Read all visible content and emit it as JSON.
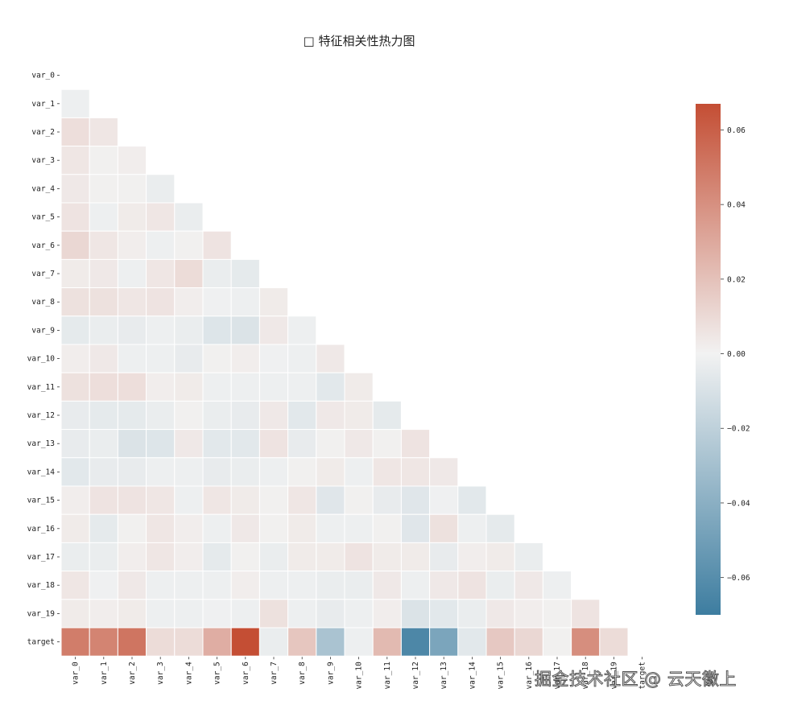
{
  "chart_data": {
    "type": "heatmap",
    "title": "□ 特征相关性热力图",
    "labels": [
      "var_0",
      "var_1",
      "var_2",
      "var_3",
      "var_4",
      "var_5",
      "var_6",
      "var_7",
      "var_8",
      "var_9",
      "var_10",
      "var_11",
      "var_12",
      "var_13",
      "var_14",
      "var_15",
      "var_16",
      "var_17",
      "var_18",
      "var_19",
      "target"
    ],
    "mask": "upper-triangle",
    "values": [
      [],
      [
        -0.002
      ],
      [
        0.008,
        0.005
      ],
      [
        0.005,
        0.001,
        0.002
      ],
      [
        0.004,
        0.001,
        0.001,
        -0.003
      ],
      [
        0.006,
        -0.002,
        0.003,
        0.005,
        -0.003
      ],
      [
        0.011,
        0.005,
        0.002,
        -0.002,
        0.001,
        0.006
      ],
      [
        0.003,
        0.004,
        -0.002,
        0.005,
        0.009,
        -0.003,
        -0.005
      ],
      [
        0.007,
        0.007,
        0.005,
        0.006,
        0.002,
        -0.001,
        -0.002,
        0.003
      ],
      [
        -0.005,
        -0.003,
        -0.004,
        -0.002,
        -0.003,
        -0.008,
        -0.009,
        0.004,
        -0.002
      ],
      [
        0.002,
        0.004,
        -0.002,
        -0.002,
        -0.004,
        0.001,
        0.002,
        -0.001,
        -0.002,
        0.004
      ],
      [
        0.007,
        0.008,
        0.008,
        0.002,
        0.003,
        -0.002,
        -0.002,
        -0.002,
        -0.002,
        -0.006,
        0.003
      ],
      [
        -0.004,
        -0.005,
        -0.005,
        -0.003,
        0.001,
        -0.003,
        -0.004,
        0.004,
        -0.006,
        0.004,
        0.003,
        -0.005
      ],
      [
        -0.004,
        -0.003,
        -0.009,
        -0.008,
        0.004,
        -0.006,
        -0.006,
        0.006,
        -0.004,
        0.001,
        0.004,
        0.001,
        0.006
      ],
      [
        -0.006,
        -0.004,
        -0.004,
        -0.002,
        -0.002,
        -0.004,
        -0.003,
        -0.002,
        0.001,
        0.003,
        -0.002,
        0.005,
        0.005,
        0.004
      ],
      [
        0.002,
        0.006,
        0.006,
        0.005,
        -0.002,
        0.005,
        0.003,
        0.001,
        0.005,
        -0.007,
        0.001,
        -0.004,
        -0.007,
        -0.001,
        -0.006
      ],
      [
        0.003,
        -0.005,
        0.001,
        0.005,
        0.002,
        -0.002,
        0.004,
        0.001,
        0.003,
        -0.002,
        -0.002,
        0.001,
        -0.007,
        0.007,
        -0.002,
        -0.005
      ],
      [
        -0.003,
        -0.003,
        0.002,
        0.005,
        0.002,
        -0.005,
        0.001,
        -0.003,
        0.003,
        0.003,
        0.006,
        0.003,
        0.003,
        -0.004,
        0.002,
        0.003,
        -0.003
      ],
      [
        0.005,
        -0.001,
        0.004,
        -0.002,
        -0.002,
        -0.002,
        0.002,
        -0.002,
        -0.002,
        -0.003,
        -0.003,
        0.004,
        -0.002,
        0.004,
        0.006,
        -0.003,
        0.004,
        -0.002
      ],
      [
        0.003,
        0.002,
        0.003,
        -0.002,
        -0.002,
        -0.001,
        -0.002,
        0.007,
        -0.002,
        -0.004,
        -0.002,
        0.002,
        -0.009,
        -0.006,
        -0.003,
        0.004,
        0.002,
        0.001,
        0.006
      ],
      [
        0.048,
        0.045,
        0.051,
        0.009,
        0.009,
        0.028,
        0.068,
        -0.003,
        0.018,
        -0.028,
        -0.002,
        0.023,
        -0.064,
        -0.046,
        -0.006,
        0.017,
        0.011,
        0.001,
        0.041,
        0.009
      ]
    ],
    "colorbar": {
      "ticks": [
        0.06,
        0.04,
        0.02,
        0.0,
        -0.02,
        -0.04,
        -0.06
      ],
      "tick_labels": [
        "0.06",
        "0.04",
        "0.02",
        "0.00",
        "−0.02",
        "−0.04",
        "−0.06"
      ],
      "range": [
        -0.07,
        0.067
      ],
      "colors": {
        "positive": "#c44e34",
        "neutral": "#f2f2f2",
        "negative": "#3d7da0"
      }
    }
  },
  "watermark": "掘金技术社区 @ 云天徽上"
}
